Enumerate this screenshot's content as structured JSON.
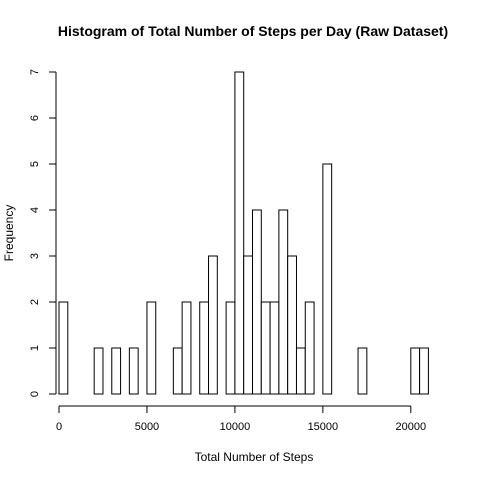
{
  "chart_data": {
    "type": "bar",
    "title": "Histogram of Total Number of Steps per Day (Raw Dataset)",
    "xlabel": "Total Number of Steps",
    "ylabel": "Frequency",
    "xlim": [
      0,
      22000
    ],
    "ylim": [
      0,
      7
    ],
    "bin_width": 500,
    "bin_starts": [
      0,
      2000,
      3000,
      4000,
      5000,
      6500,
      7000,
      8000,
      8500,
      9500,
      10000,
      10500,
      11000,
      11500,
      12000,
      12500,
      13000,
      13500,
      14000,
      15000,
      17000,
      20000,
      20500
    ],
    "values": [
      2,
      1,
      1,
      1,
      2,
      1,
      2,
      2,
      3,
      2,
      7,
      3,
      4,
      2,
      2,
      4,
      3,
      1,
      2,
      5,
      1,
      1,
      1
    ],
    "x_ticks": [
      0,
      5000,
      10000,
      15000,
      20000
    ],
    "x_tick_labels": [
      "0",
      "5000",
      "10000",
      "15000",
      "20000"
    ],
    "y_ticks": [
      0,
      1,
      2,
      3,
      4,
      5,
      6,
      7
    ],
    "y_tick_labels": [
      "0",
      "1",
      "2",
      "3",
      "4",
      "5",
      "6",
      "7"
    ],
    "grid": false,
    "colors": {
      "bar_fill": "#ffffff",
      "bar_stroke": "#000000"
    }
  }
}
